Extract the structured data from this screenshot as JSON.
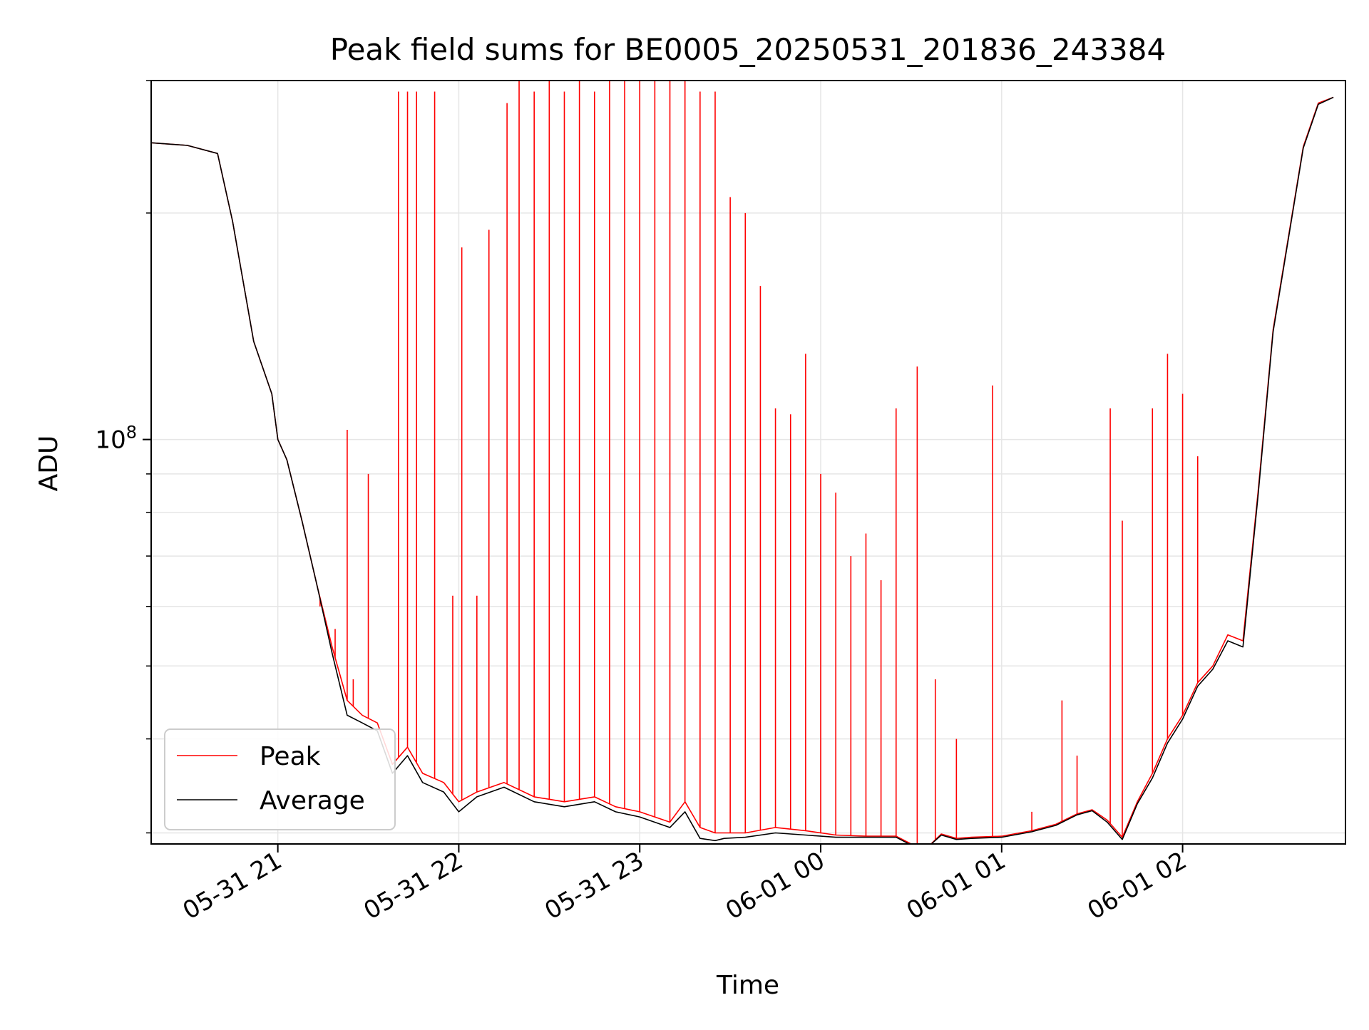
{
  "chart_data": {
    "type": "line",
    "title": "Peak field sums for BE0005_20250531_201836_243384",
    "xlabel": "Time",
    "ylabel": "ADU",
    "yscale": "log",
    "ylim": [
      29000000,
      300000000
    ],
    "xlim": [
      "2025-05-31T20:18:00",
      "2025-06-01T02:54:00"
    ],
    "x_ticks": [
      "05-31 21",
      "05-31 22",
      "05-31 23",
      "06-01 00",
      "06-01 01",
      "06-01 02"
    ],
    "y_tick_major_label": "10^8",
    "grid": true,
    "legend_position": "lower-left",
    "series": [
      {
        "name": "Peak",
        "color": "#ff0000",
        "x": [
          "2025-05-31T20:18:00",
          "2025-05-31T20:30:00",
          "2025-05-31T20:40:00",
          "2025-05-31T20:45:00",
          "2025-05-31T20:52:00",
          "2025-05-31T20:58:00",
          "2025-05-31T21:00:00",
          "2025-05-31T21:03:00",
          "2025-05-31T21:08:00",
          "2025-05-31T21:13:00",
          "2025-05-31T21:18:00",
          "2025-05-31T21:23:00",
          "2025-05-31T21:28:00",
          "2025-05-31T21:33:00",
          "2025-05-31T21:38:00",
          "2025-05-31T21:43:00",
          "2025-05-31T21:48:00",
          "2025-05-31T21:55:00",
          "2025-05-31T22:00:00",
          "2025-05-31T22:06:00",
          "2025-05-31T22:15:00",
          "2025-05-31T22:25:00",
          "2025-05-31T22:35:00",
          "2025-05-31T22:45:00",
          "2025-05-31T22:52:00",
          "2025-05-31T23:00:00",
          "2025-05-31T23:10:00",
          "2025-05-31T23:15:00",
          "2025-05-31T23:20:00",
          "2025-05-31T23:25:00",
          "2025-05-31T23:28:00",
          "2025-05-31T23:35:00",
          "2025-05-31T23:45:00",
          "2025-05-31T23:55:00",
          "2025-06-01T00:05:00",
          "2025-06-01T00:15:00",
          "2025-06-01T00:25:00",
          "2025-06-01T00:30:00",
          "2025-06-01T00:35:00",
          "2025-06-01T00:40:00",
          "2025-06-01T00:45:00",
          "2025-06-01T00:50:00",
          "2025-06-01T01:00:00",
          "2025-06-01T01:10:00",
          "2025-06-01T01:18:00",
          "2025-06-01T01:25:00",
          "2025-06-01T01:30:00",
          "2025-06-01T01:35:00",
          "2025-06-01T01:40:00",
          "2025-06-01T01:45:00",
          "2025-06-01T01:50:00",
          "2025-06-01T01:55:00",
          "2025-06-01T02:00:00",
          "2025-06-01T02:05:00",
          "2025-06-01T02:10:00",
          "2025-06-01T02:15:00",
          "2025-06-01T02:20:00",
          "2025-06-01T02:25:00",
          "2025-06-01T02:30:00",
          "2025-06-01T02:35:00",
          "2025-06-01T02:40:00",
          "2025-06-01T02:45:00",
          "2025-06-01T02:50:00"
        ],
        "y": [
          248000000,
          246000000,
          240000000,
          195000000,
          135000000,
          115000000,
          100000000,
          94000000,
          78000000,
          64000000,
          53000000,
          45000000,
          43000000,
          42000000,
          37000000,
          39000000,
          36000000,
          35000000,
          33000000,
          34000000,
          35000000,
          33500000,
          33000000,
          33500000,
          32500000,
          32000000,
          31000000,
          33000000,
          30500000,
          30000000,
          30000000,
          30000000,
          30500000,
          30200000,
          29800000,
          29700000,
          29700000,
          29000000,
          28600000,
          29900000,
          29500000,
          29600000,
          29700000,
          30200000,
          30800000,
          31800000,
          32200000,
          31200000,
          29600000,
          33000000,
          36000000,
          40000000,
          43000000,
          47500000,
          50000000,
          55000000,
          54000000,
          85000000,
          140000000,
          185000000,
          245000000,
          280000000,
          285000000
        ],
        "spikes": [
          [
            "2025-05-31T21:14:00",
            60000000
          ],
          [
            "2025-05-31T21:17:00",
            55000000
          ],
          [
            "2025-05-31T21:19:00",
            56000000
          ],
          [
            "2025-05-31T21:23:00",
            103000000
          ],
          [
            "2025-05-31T21:25:00",
            48000000
          ],
          [
            "2025-05-31T21:30:00",
            90000000
          ],
          [
            "2025-05-31T21:40:00",
            290000000
          ],
          [
            "2025-05-31T21:43:00",
            290000000
          ],
          [
            "2025-05-31T21:46:00",
            290000000
          ],
          [
            "2025-05-31T21:52:00",
            290000000
          ],
          [
            "2025-05-31T21:58:00",
            62000000
          ],
          [
            "2025-05-31T22:01:00",
            180000000
          ],
          [
            "2025-05-31T22:06:00",
            62000000
          ],
          [
            "2025-05-31T22:10:00",
            190000000
          ],
          [
            "2025-05-31T22:16:00",
            280000000
          ],
          [
            "2025-05-31T22:20:00",
            320000000
          ],
          [
            "2025-05-31T22:25:00",
            290000000
          ],
          [
            "2025-05-31T22:30:00",
            300000000
          ],
          [
            "2025-05-31T22:35:00",
            290000000
          ],
          [
            "2025-05-31T22:40:00",
            300000000
          ],
          [
            "2025-05-31T22:45:00",
            290000000
          ],
          [
            "2025-05-31T22:50:00",
            300000000
          ],
          [
            "2025-05-31T22:55:00",
            310000000
          ],
          [
            "2025-05-31T23:00:00",
            300000000
          ],
          [
            "2025-05-31T23:05:00",
            300000000
          ],
          [
            "2025-05-31T23:10:00",
            310000000
          ],
          [
            "2025-05-31T23:15:00",
            300000000
          ],
          [
            "2025-05-31T23:20:00",
            290000000
          ],
          [
            "2025-05-31T23:25:00",
            290000000
          ],
          [
            "2025-05-31T23:30:00",
            210000000
          ],
          [
            "2025-05-31T23:35:00",
            200000000
          ],
          [
            "2025-05-31T23:40:00",
            160000000
          ],
          [
            "2025-05-31T23:45:00",
            110000000
          ],
          [
            "2025-05-31T23:50:00",
            108000000
          ],
          [
            "2025-05-31T23:55:00",
            130000000
          ],
          [
            "2025-06-01T00:00:00",
            90000000
          ],
          [
            "2025-06-01T00:05:00",
            85000000
          ],
          [
            "2025-06-01T00:10:00",
            70000000
          ],
          [
            "2025-06-01T00:15:00",
            75000000
          ],
          [
            "2025-06-01T00:20:00",
            65000000
          ],
          [
            "2025-06-01T00:25:00",
            110000000
          ],
          [
            "2025-06-01T00:32:00",
            125000000
          ],
          [
            "2025-06-01T00:38:00",
            48000000
          ],
          [
            "2025-06-01T00:45:00",
            40000000
          ],
          [
            "2025-06-01T00:57:00",
            118000000
          ],
          [
            "2025-06-01T01:10:00",
            32000000
          ],
          [
            "2025-06-01T01:20:00",
            45000000
          ],
          [
            "2025-06-01T01:25:00",
            38000000
          ],
          [
            "2025-06-01T01:36:00",
            110000000
          ],
          [
            "2025-06-01T01:40:00",
            78000000
          ],
          [
            "2025-06-01T01:50:00",
            110000000
          ],
          [
            "2025-06-01T01:55:00",
            130000000
          ],
          [
            "2025-06-01T02:00:00",
            115000000
          ],
          [
            "2025-06-01T02:05:00",
            95000000
          ]
        ]
      },
      {
        "name": "Average",
        "color": "#000000",
        "x": [
          "2025-05-31T20:18:00",
          "2025-05-31T20:30:00",
          "2025-05-31T20:40:00",
          "2025-05-31T20:45:00",
          "2025-05-31T20:52:00",
          "2025-05-31T20:58:00",
          "2025-05-31T21:00:00",
          "2025-05-31T21:03:00",
          "2025-05-31T21:08:00",
          "2025-05-31T21:13:00",
          "2025-05-31T21:18:00",
          "2025-05-31T21:23:00",
          "2025-05-31T21:28:00",
          "2025-05-31T21:33:00",
          "2025-05-31T21:38:00",
          "2025-05-31T21:43:00",
          "2025-05-31T21:48:00",
          "2025-05-31T21:55:00",
          "2025-05-31T22:00:00",
          "2025-05-31T22:06:00",
          "2025-05-31T22:15:00",
          "2025-05-31T22:25:00",
          "2025-05-31T22:35:00",
          "2025-05-31T22:45:00",
          "2025-05-31T22:52:00",
          "2025-05-31T23:00:00",
          "2025-05-31T23:10:00",
          "2025-05-31T23:15:00",
          "2025-05-31T23:20:00",
          "2025-05-31T23:25:00",
          "2025-05-31T23:28:00",
          "2025-05-31T23:35:00",
          "2025-05-31T23:45:00",
          "2025-05-31T23:55:00",
          "2025-06-01T00:05:00",
          "2025-06-01T00:15:00",
          "2025-06-01T00:25:00",
          "2025-06-01T00:30:00",
          "2025-06-01T00:35:00",
          "2025-06-01T00:40:00",
          "2025-06-01T00:45:00",
          "2025-06-01T00:50:00",
          "2025-06-01T01:00:00",
          "2025-06-01T01:10:00",
          "2025-06-01T01:18:00",
          "2025-06-01T01:25:00",
          "2025-06-01T01:30:00",
          "2025-06-01T01:35:00",
          "2025-06-01T01:40:00",
          "2025-06-01T01:45:00",
          "2025-06-01T01:50:00",
          "2025-06-01T01:55:00",
          "2025-06-01T02:00:00",
          "2025-06-01T02:05:00",
          "2025-06-01T02:10:00",
          "2025-06-01T02:15:00",
          "2025-06-01T02:20:00",
          "2025-06-01T02:25:00",
          "2025-06-01T02:30:00",
          "2025-06-01T02:35:00",
          "2025-06-01T02:40:00",
          "2025-06-01T02:45:00",
          "2025-06-01T02:50:00"
        ],
        "y": [
          248000000,
          246000000,
          240000000,
          195000000,
          135000000,
          115000000,
          100000000,
          94000000,
          78000000,
          64000000,
          52000000,
          43000000,
          42000000,
          41000000,
          36000000,
          38000000,
          35000000,
          34000000,
          32000000,
          33500000,
          34500000,
          33000000,
          32500000,
          33000000,
          32000000,
          31500000,
          30500000,
          32000000,
          29500000,
          29300000,
          29500000,
          29600000,
          30000000,
          29800000,
          29600000,
          29600000,
          29600000,
          28900000,
          28600000,
          29800000,
          29400000,
          29500000,
          29600000,
          30100000,
          30700000,
          31700000,
          32100000,
          31000000,
          29400000,
          32800000,
          35500000,
          39500000,
          42500000,
          47000000,
          49500000,
          54000000,
          53000000,
          84000000,
          139000000,
          184000000,
          244000000,
          279000000,
          285000000
        ]
      }
    ]
  }
}
